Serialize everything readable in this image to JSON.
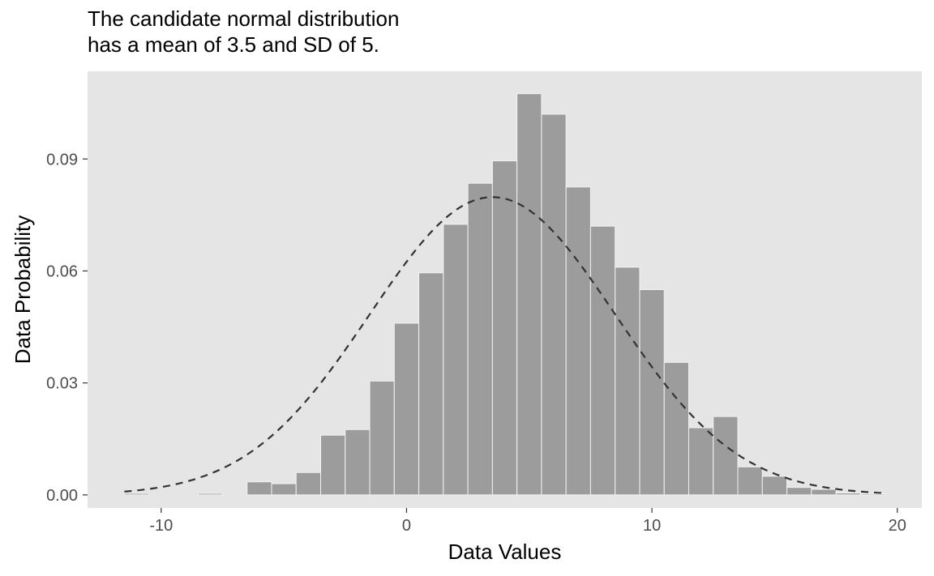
{
  "chart_data": {
    "type": "bar",
    "title_lines": [
      "The candidate normal distribution",
      "has a mean of 3.5 and SD of 5."
    ],
    "xlabel": "Data Values",
    "ylabel": "Data Probability",
    "xlim": [
      -13,
      21
    ],
    "ylim": [
      -0.0035,
      0.1135
    ],
    "x_ticks": [
      -10,
      0,
      10,
      20
    ],
    "x_tick_labels": [
      "-10",
      "0",
      "10",
      "20"
    ],
    "y_ticks": [
      0,
      0.03,
      0.06,
      0.09
    ],
    "y_tick_labels": [
      "0.00",
      "0.03",
      "0.06",
      "0.09"
    ],
    "grid": false,
    "bin_width": 1,
    "bins": [
      {
        "x0": -11.5,
        "x1": -10.5,
        "y": 0.0004
      },
      {
        "x0": -10.5,
        "x1": -9.5,
        "y": 0
      },
      {
        "x0": -9.5,
        "x1": -8.5,
        "y": 0
      },
      {
        "x0": -8.5,
        "x1": -7.5,
        "y": 0.0004
      },
      {
        "x0": -7.5,
        "x1": -6.5,
        "y": 0
      },
      {
        "x0": -6.5,
        "x1": -5.5,
        "y": 0.0035
      },
      {
        "x0": -5.5,
        "x1": -4.5,
        "y": 0.003
      },
      {
        "x0": -4.5,
        "x1": -3.5,
        "y": 0.006
      },
      {
        "x0": -3.5,
        "x1": -2.5,
        "y": 0.016
      },
      {
        "x0": -2.5,
        "x1": -1.5,
        "y": 0.0175
      },
      {
        "x0": -1.5,
        "x1": -0.5,
        "y": 0.0305
      },
      {
        "x0": -0.5,
        "x1": 0.5,
        "y": 0.046
      },
      {
        "x0": 0.5,
        "x1": 1.5,
        "y": 0.0595
      },
      {
        "x0": 1.5,
        "x1": 2.5,
        "y": 0.0725
      },
      {
        "x0": 2.5,
        "x1": 3.5,
        "y": 0.0835
      },
      {
        "x0": 3.5,
        "x1": 4.5,
        "y": 0.0895
      },
      {
        "x0": 4.5,
        "x1": 5.5,
        "y": 0.1075
      },
      {
        "x0": 5.5,
        "x1": 6.5,
        "y": 0.102
      },
      {
        "x0": 6.5,
        "x1": 7.5,
        "y": 0.0825
      },
      {
        "x0": 7.5,
        "x1": 8.5,
        "y": 0.072
      },
      {
        "x0": 8.5,
        "x1": 9.5,
        "y": 0.061
      },
      {
        "x0": 9.5,
        "x1": 10.5,
        "y": 0.055
      },
      {
        "x0": 10.5,
        "x1": 11.5,
        "y": 0.0355
      },
      {
        "x0": 11.5,
        "x1": 12.5,
        "y": 0.018
      },
      {
        "x0": 12.5,
        "x1": 13.5,
        "y": 0.021
      },
      {
        "x0": 13.5,
        "x1": 14.5,
        "y": 0.0075
      },
      {
        "x0": 14.5,
        "x1": 15.5,
        "y": 0.005
      },
      {
        "x0": 15.5,
        "x1": 16.5,
        "y": 0.002
      },
      {
        "x0": 16.5,
        "x1": 17.5,
        "y": 0.0015
      },
      {
        "x0": 17.5,
        "x1": 18.5,
        "y": 0.0005
      },
      {
        "x0": 18.5,
        "x1": 19.5,
        "y": 0.0003
      }
    ],
    "density_curve": {
      "distribution": "normal",
      "mean": 3.5,
      "sd": 5,
      "x_range": [
        -11.5,
        19.5
      ],
      "line_style": "dashed",
      "color": "#333333"
    },
    "colors": {
      "panel_background": "#e5e5e5",
      "bar_fill": "#9c9c9c",
      "bar_outline": "#f2f2f2",
      "axis_text": "#4d4d4d",
      "tick": "#333333",
      "label_text": "#000000"
    }
  }
}
